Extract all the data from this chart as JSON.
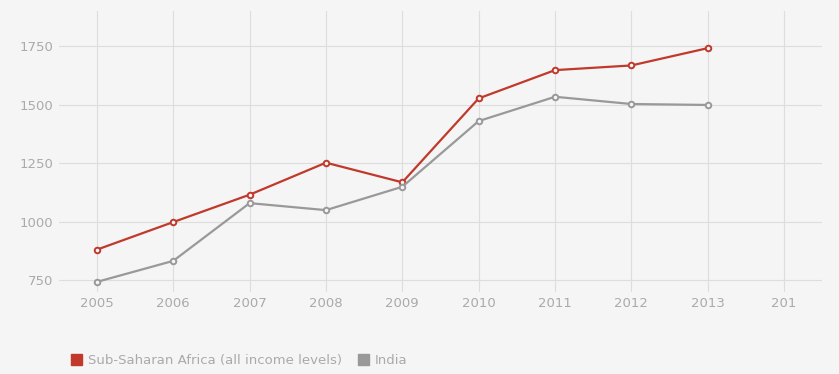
{
  "years": [
    2005,
    2006,
    2007,
    2008,
    2009,
    2010,
    2011,
    2012,
    2013
  ],
  "sub_saharan": [
    880,
    998,
    1115,
    1252,
    1168,
    1527,
    1648,
    1668,
    1742
  ],
  "india": [
    742,
    832,
    1079,
    1049,
    1149,
    1430,
    1534,
    1503,
    1499
  ],
  "sub_saharan_color": "#c0392b",
  "india_color": "#999999",
  "background_color": "#f5f5f5",
  "grid_color": "#dddddd",
  "marker_size": 4,
  "line_width": 1.6,
  "ylim": [
    700,
    1900
  ],
  "yticks": [
    750,
    1000,
    1250,
    1500,
    1750
  ],
  "xlim": [
    2004.5,
    2014.5
  ],
  "legend_label_ssa": "Sub-Saharan Africa (all income levels)",
  "legend_label_india": "India",
  "tick_color": "#aaaaaa",
  "axis_label_color": "#aaaaaa",
  "tick_fontsize": 9.5,
  "legend_fontsize": 9.5
}
